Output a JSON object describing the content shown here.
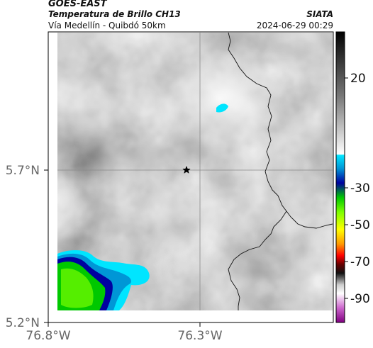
{
  "header": {
    "satellite": "GOES-EAST",
    "product": "Temperatura de Brillo CH13",
    "route": "Vía Medellín - Quibdó 50km",
    "org": "SIATA",
    "datetime": "2024-06-29 00:29"
  },
  "axes": {
    "y_ticks": [
      {
        "value": 5.7,
        "label": "5.7°N"
      },
      {
        "value": 5.2,
        "label": "5.2°N"
      }
    ],
    "x_ticks": [
      {
        "value": -76.8,
        "label": "76.8°W"
      },
      {
        "value": -76.3,
        "label": "76.3°W"
      }
    ]
  },
  "colorbar": {
    "ticks": [
      {
        "value": 20,
        "label": "20"
      },
      {
        "value": -30,
        "label": "-30"
      },
      {
        "value": -50,
        "label": "-50"
      },
      {
        "value": -70,
        "label": "-70"
      },
      {
        "value": -90,
        "label": "-90"
      }
    ]
  },
  "marker": {
    "type": "star",
    "lon": -76.35,
    "lat": 5.7
  }
}
